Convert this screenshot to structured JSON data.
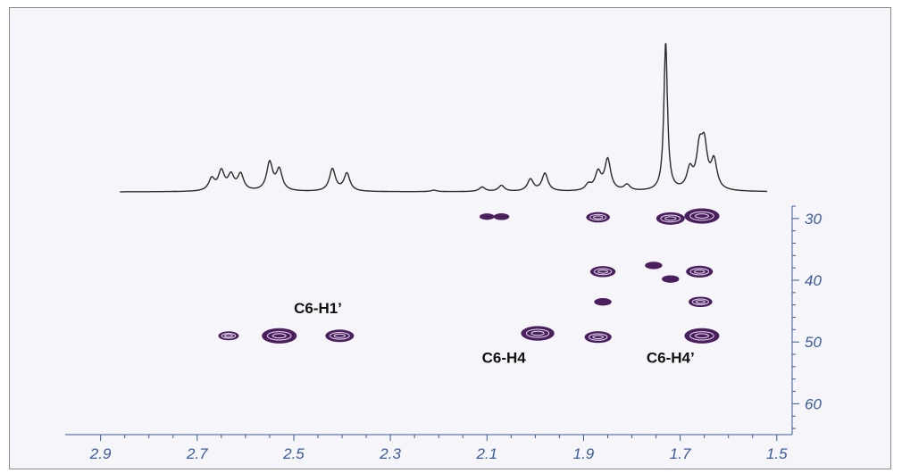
{
  "chart_data": {
    "type": "heatmap",
    "title": "",
    "xlabel": "",
    "ylabel": "",
    "x_reversed": true,
    "xlim": [
      2.94,
      1.47
    ],
    "ylim": [
      28,
      65
    ],
    "x_ticks": [
      "2.9",
      "2.7",
      "2.5",
      "2.3",
      "2.1",
      "1.9",
      "1.7",
      "1.5"
    ],
    "y_ticks": [
      "30",
      "40",
      "50",
      "60"
    ],
    "spectrum_1d": {
      "x_range": [
        2.86,
        1.52
      ],
      "peaks": [
        {
          "x": 2.67,
          "h": 0.08
        },
        {
          "x": 2.65,
          "h": 0.13
        },
        {
          "x": 2.63,
          "h": 0.1
        },
        {
          "x": 2.61,
          "h": 0.11
        },
        {
          "x": 2.55,
          "h": 0.19
        },
        {
          "x": 2.53,
          "h": 0.14
        },
        {
          "x": 2.42,
          "h": 0.15
        },
        {
          "x": 2.39,
          "h": 0.12
        },
        {
          "x": 2.21,
          "h": 0.01
        },
        {
          "x": 2.11,
          "h": 0.03
        },
        {
          "x": 2.07,
          "h": 0.04
        },
        {
          "x": 2.01,
          "h": 0.08
        },
        {
          "x": 1.98,
          "h": 0.12
        },
        {
          "x": 1.89,
          "h": 0.04
        },
        {
          "x": 1.87,
          "h": 0.12
        },
        {
          "x": 1.85,
          "h": 0.21
        },
        {
          "x": 1.81,
          "h": 0.04
        },
        {
          "x": 1.73,
          "h": 1.0
        },
        {
          "x": 1.68,
          "h": 0.13
        },
        {
          "x": 1.66,
          "h": 0.25
        },
        {
          "x": 1.65,
          "h": 0.27
        },
        {
          "x": 1.63,
          "h": 0.19
        }
      ]
    },
    "cross_peaks": [
      {
        "x": 2.635,
        "y": 49.0,
        "size": 0.5
      },
      {
        "x": 2.53,
        "y": 49.0,
        "size": 1.4
      },
      {
        "x": 2.405,
        "y": 49.0,
        "size": 1.0
      },
      {
        "x": 1.995,
        "y": 48.6,
        "size": 1.3
      },
      {
        "x": 1.87,
        "y": 49.2,
        "size": 0.9
      },
      {
        "x": 1.655,
        "y": 49.0,
        "size": 1.4
      },
      {
        "x": 1.658,
        "y": 43.5,
        "size": 0.7
      },
      {
        "x": 1.66,
        "y": 38.6,
        "size": 0.9
      },
      {
        "x": 1.86,
        "y": 38.6,
        "size": 0.8
      },
      {
        "x": 1.86,
        "y": 43.5,
        "size": 0.3
      },
      {
        "x": 1.755,
        "y": 37.6,
        "size": 0.3
      },
      {
        "x": 1.72,
        "y": 39.8,
        "size": 0.3
      },
      {
        "x": 1.72,
        "y": 30.0,
        "size": 1.0
      },
      {
        "x": 1.655,
        "y": 29.6,
        "size": 1.4
      },
      {
        "x": 1.87,
        "y": 29.8,
        "size": 0.7
      },
      {
        "x": 2.07,
        "y": 29.7,
        "size": 0.2
      },
      {
        "x": 2.1,
        "y": 29.7,
        "size": 0.15
      }
    ],
    "annotations": [
      {
        "text": "C6-H1’",
        "x": 2.45,
        "y": 44.5
      },
      {
        "text": "C6-H4",
        "x": 2.065,
        "y": 52.5
      },
      {
        "text": "C6-H4’",
        "x": 1.72,
        "y": 52.5
      }
    ],
    "colors": {
      "contour": "#4a1f5e",
      "axis": "#3a5a9a",
      "trace": "#2a2a2a"
    }
  }
}
